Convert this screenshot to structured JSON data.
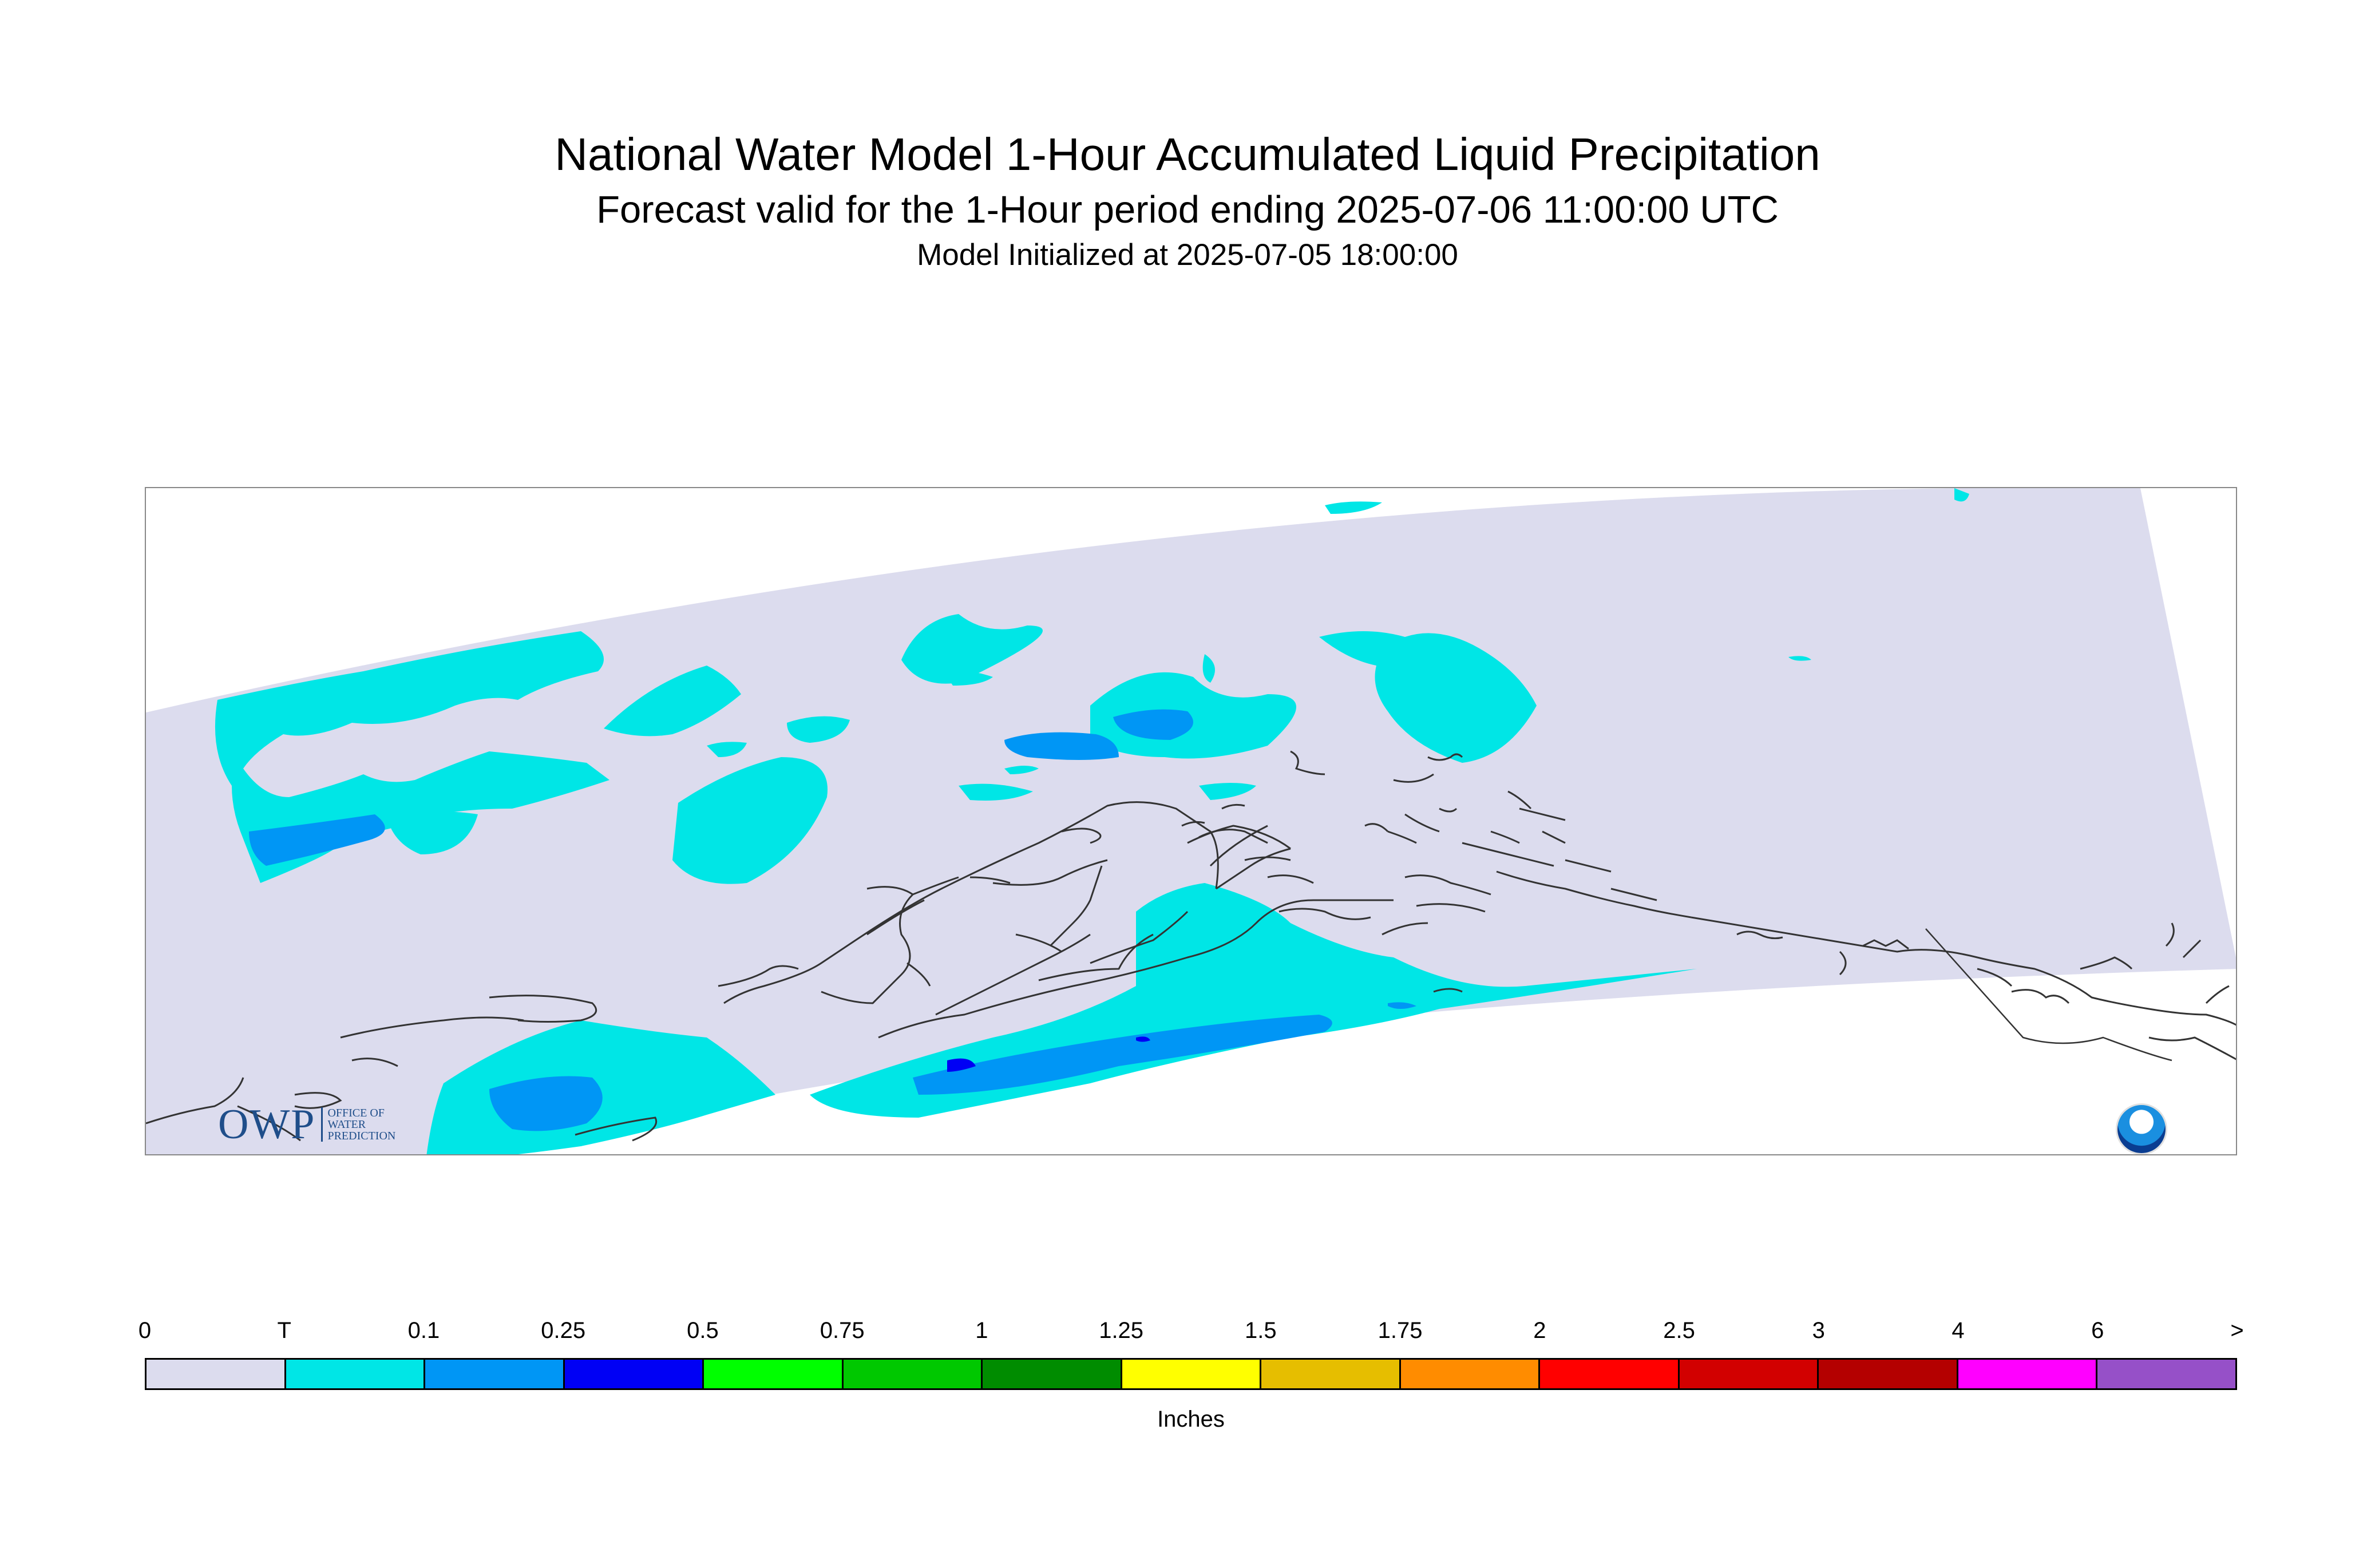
{
  "titles": {
    "main": "National Water Model 1-Hour Accumulated Liquid Precipitation",
    "valid": "Forecast valid for the 1-Hour period ending 2025-07-06 11:00:00 UTC",
    "init": "Model Initialized at 2025-07-05 18:00:00"
  },
  "logos": {
    "owp_letters": "OWP",
    "owp_line1": "OFFICE OF",
    "owp_line2": "WATER",
    "owp_line3": "PREDICTION",
    "noaa": "NOAA"
  },
  "legend": {
    "units": "Inches",
    "tick_labels": [
      "0",
      "T",
      "0.1",
      "0.25",
      "0.5",
      "0.75",
      "1",
      "1.25",
      "1.5",
      "1.75",
      "2",
      "2.5",
      "3",
      "4",
      "6",
      ">"
    ],
    "bins": [
      {
        "color": "#dcdcee"
      },
      {
        "color": "#00e6e6"
      },
      {
        "color": "#0096f5"
      },
      {
        "color": "#0000f5"
      },
      {
        "color": "#00ff00"
      },
      {
        "color": "#00c800"
      },
      {
        "color": "#008c00"
      },
      {
        "color": "#ffff00"
      },
      {
        "color": "#e6be00"
      },
      {
        "color": "#ff8c00"
      },
      {
        "color": "#ff0000"
      },
      {
        "color": "#d20000"
      },
      {
        "color": "#b40000"
      },
      {
        "color": "#ff00ff"
      },
      {
        "color": "#9650c8"
      }
    ]
  },
  "colors": {
    "domain_fill": "#dcdcee",
    "trace": "#00e6e6",
    "light": "#0096f5",
    "moderate": "#0000f5",
    "coastline": "#333333",
    "frame": "#888888"
  }
}
